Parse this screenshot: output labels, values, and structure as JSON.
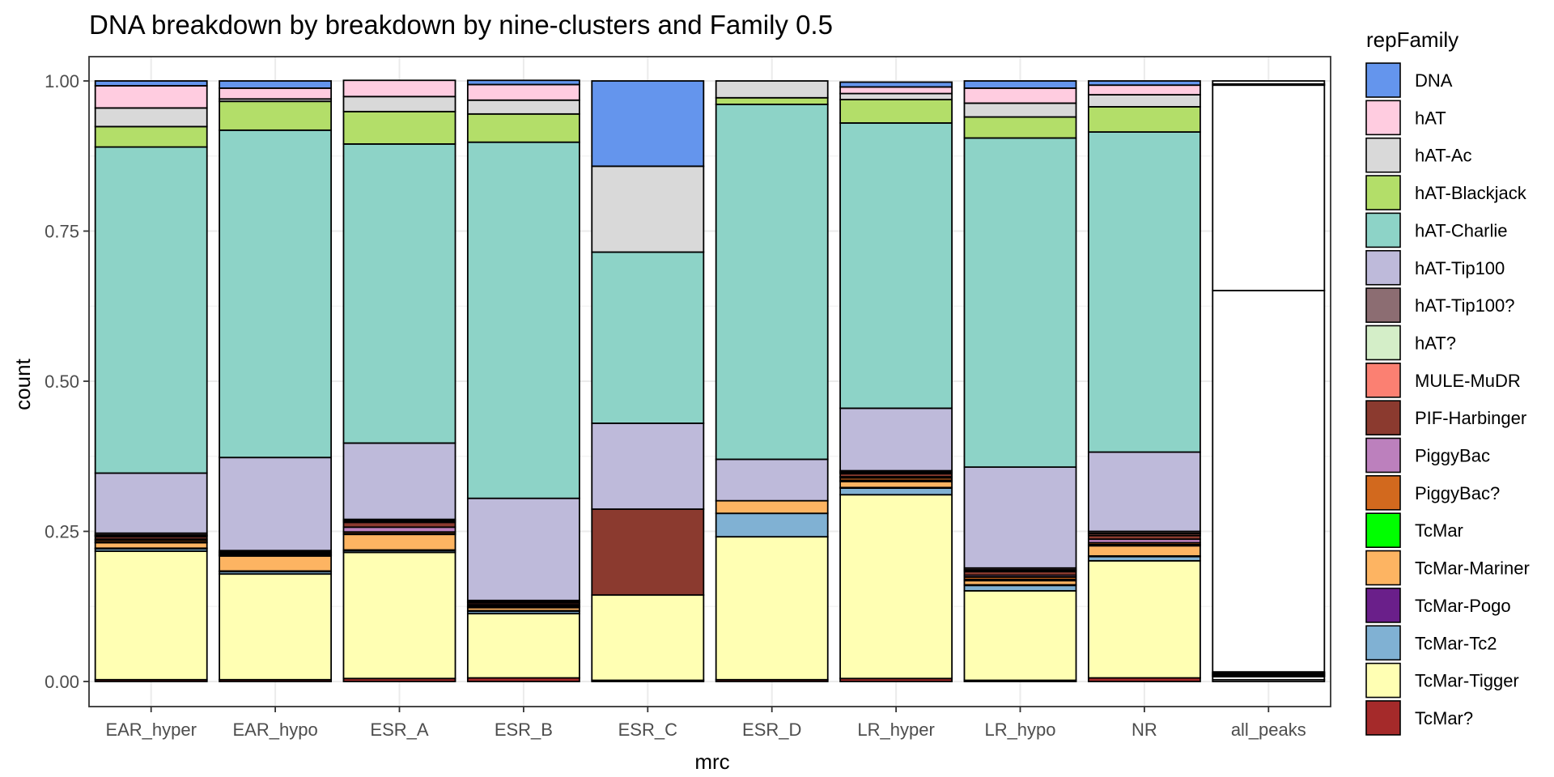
{
  "chart_data": {
    "type": "bar",
    "stacked": true,
    "title": "DNA breakdown by breakdown by nine-clusters and Family 0.5",
    "xlabel": "mrc",
    "ylabel": "count",
    "ylim": [
      0,
      1.05
    ],
    "yticks": [
      "0.00",
      "0.25",
      "0.50",
      "0.75",
      "1.00"
    ],
    "grid": true,
    "legend_position": "right",
    "legend_title": "repFamily",
    "categories": [
      "EAR_hyper",
      "EAR_hypo",
      "ESR_A",
      "ESR_B",
      "ESR_C",
      "ESR_D",
      "LR_hyper",
      "LR_hypo",
      "NR",
      "all_peaks"
    ],
    "series": [
      {
        "name": "DNA",
        "color": "#6495ED",
        "values": [
          0.008,
          0.012,
          0.0,
          0.007,
          0.142,
          0.0,
          0.008,
          0.012,
          0.007,
          0.0
        ]
      },
      {
        "name": "hAT",
        "color": "#FFCCE0",
        "values": [
          0.037,
          0.018,
          0.027,
          0.026,
          0.0,
          0.0,
          0.011,
          0.025,
          0.016,
          0.005
        ]
      },
      {
        "name": "hAT-Ac",
        "color": "#D9D9D9",
        "values": [
          0.031,
          0.004,
          0.025,
          0.023,
          0.143,
          0.028,
          0.01,
          0.023,
          0.02,
          0.002
        ]
      },
      {
        "name": "hAT-Blackjack",
        "color": "#B3DE69",
        "values": [
          0.034,
          0.048,
          0.054,
          0.047,
          0.0,
          0.011,
          0.039,
          0.035,
          0.042,
          0.0
        ]
      },
      {
        "name": "hAT-Charlie",
        "color": "#8DD3C7",
        "values": [
          0.543,
          0.545,
          0.498,
          0.593,
          0.285,
          0.591,
          0.475,
          0.548,
          0.533,
          0.342
        ]
      },
      {
        "name": "hAT-Tip100",
        "color": "#BEBADA",
        "values": [
          0.1,
          0.155,
          0.127,
          0.17,
          0.143,
          0.069,
          0.104,
          0.168,
          0.132,
          0.635
        ]
      },
      {
        "name": "hAT-Tip100?",
        "color": "#8C6D72",
        "values": [
          0.003,
          0.002,
          0.002,
          0.002,
          0.0,
          0.0,
          0.002,
          0.003,
          0.003,
          0.001
        ]
      },
      {
        "name": "hAT?",
        "color": "#D4EEC8",
        "values": [
          0.001,
          0.001,
          0.001,
          0.001,
          0.0,
          0.0,
          0.001,
          0.001,
          0.001,
          0.001
        ]
      },
      {
        "name": "MULE-MuDR",
        "color": "#FB8072",
        "values": [
          0.002,
          0.001,
          0.002,
          0.001,
          0.0,
          0.0,
          0.002,
          0.002,
          0.003,
          0.001
        ]
      },
      {
        "name": "PIF-Harbinger",
        "color": "#8B3A2F",
        "values": [
          0.004,
          0.002,
          0.008,
          0.003,
          0.143,
          0.0,
          0.005,
          0.006,
          0.006,
          0.001
        ]
      },
      {
        "name": "PiggyBac",
        "color": "#BC80BD",
        "values": [
          0.002,
          0.001,
          0.008,
          0.002,
          0.0,
          0.0,
          0.002,
          0.003,
          0.006,
          0.001
        ]
      },
      {
        "name": "PiggyBac?",
        "color": "#D2691E",
        "values": [
          0.003,
          0.001,
          0.003,
          0.002,
          0.0,
          0.0,
          0.004,
          0.004,
          0.003,
          0.001
        ]
      },
      {
        "name": "TcMar",
        "color": "#00FF00",
        "values": [
          0.001,
          0.001,
          0.001,
          0.001,
          0.0,
          0.0,
          0.002,
          0.002,
          0.002,
          0.001
        ]
      },
      {
        "name": "TcMar-Mariner",
        "color": "#FDB462",
        "values": [
          0.009,
          0.025,
          0.026,
          0.005,
          0.0,
          0.021,
          0.01,
          0.007,
          0.017,
          0.0
        ]
      },
      {
        "name": "TcMar-Pogo",
        "color": "#6A1F8A",
        "values": [
          0.001,
          0.001,
          0.001,
          0.001,
          0.0,
          0.0,
          0.001,
          0.001,
          0.001,
          0.0
        ]
      },
      {
        "name": "TcMar-Tc2",
        "color": "#80B1D3",
        "values": [
          0.004,
          0.004,
          0.003,
          0.004,
          0.0,
          0.039,
          0.011,
          0.009,
          0.007,
          0.001
        ]
      },
      {
        "name": "TcMar-Tigger",
        "color": "#FFFFB3",
        "values": [
          0.214,
          0.176,
          0.21,
          0.107,
          0.142,
          0.238,
          0.306,
          0.149,
          0.195,
          0.005
        ]
      },
      {
        "name": "TcMar?",
        "color": "#A52A2A",
        "values": [
          0.003,
          0.003,
          0.005,
          0.006,
          0.002,
          0.003,
          0.005,
          0.002,
          0.006,
          0.003
        ]
      }
    ]
  }
}
